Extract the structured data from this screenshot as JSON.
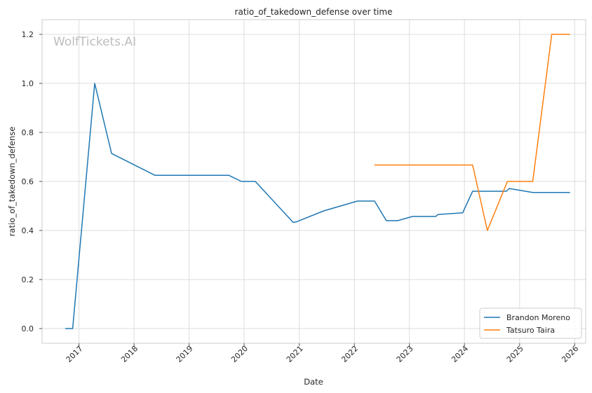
{
  "chart_data": {
    "type": "line",
    "title": "ratio_of_takedown_defense over time",
    "xlabel": "Date",
    "ylabel": "ratio_of_takedown_defense",
    "watermark": "WolfTickets.AI",
    "x_axis_type": "date",
    "xlim": [
      "2016-05-01",
      "2026-03-15"
    ],
    "ylim": [
      -0.06,
      1.26
    ],
    "x_ticks": [
      "2017",
      "2018",
      "2019",
      "2020",
      "2021",
      "2022",
      "2023",
      "2024",
      "2025",
      "2026"
    ],
    "y_ticks": [
      "0.0",
      "0.2",
      "0.4",
      "0.6",
      "0.8",
      "1.0",
      "1.2"
    ],
    "y_tick_values": [
      0.0,
      0.2,
      0.4,
      0.6,
      0.8,
      1.0,
      1.2
    ],
    "grid": true,
    "legend_position": "bottom-right",
    "series": [
      {
        "name": "Brandon Moreno",
        "color": "#1f77b4",
        "points": [
          [
            "2016-10-01",
            0.0
          ],
          [
            "2016-11-20",
            0.0
          ],
          [
            "2017-04-15",
            1.0
          ],
          [
            "2017-08-05",
            0.714
          ],
          [
            "2018-05-19",
            0.625
          ],
          [
            "2019-09-21",
            0.625
          ],
          [
            "2019-12-14",
            0.6
          ],
          [
            "2020-03-15",
            0.6
          ],
          [
            "2020-11-21",
            0.433
          ],
          [
            "2020-12-12",
            0.435
          ],
          [
            "2021-06-12",
            0.48
          ],
          [
            "2022-01-22",
            0.52
          ],
          [
            "2022-05-15",
            0.52
          ],
          [
            "2022-08-01",
            0.44
          ],
          [
            "2022-10-15",
            0.44
          ],
          [
            "2023-01-21",
            0.457
          ],
          [
            "2023-06-24",
            0.457
          ],
          [
            "2023-07-10",
            0.465
          ],
          [
            "2023-12-20",
            0.472
          ],
          [
            "2024-02-24",
            0.56
          ],
          [
            "2024-10-05",
            0.56
          ],
          [
            "2024-10-25",
            0.571
          ],
          [
            "2025-03-29",
            0.555
          ],
          [
            "2025-12-01",
            0.555
          ]
        ]
      },
      {
        "name": "Tatsuro Taira",
        "color": "#ff7f0e",
        "points": [
          [
            "2022-05-14",
            0.667
          ],
          [
            "2024-02-24",
            0.667
          ],
          [
            "2024-06-01",
            0.4
          ],
          [
            "2024-10-12",
            0.6
          ],
          [
            "2025-03-29",
            0.6
          ],
          [
            "2025-08-02",
            1.2
          ],
          [
            "2025-12-01",
            1.2
          ]
        ]
      }
    ]
  }
}
